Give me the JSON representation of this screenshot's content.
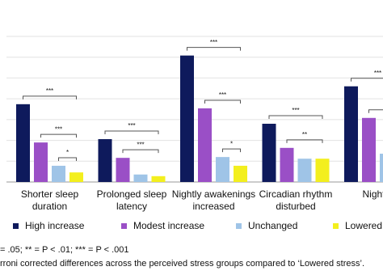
{
  "chart_data": {
    "type": "bar",
    "categories": [
      [
        "Shorter sleep",
        "duration"
      ],
      [
        "Prolonged sleep",
        "latency"
      ],
      [
        "Nightly awakenings",
        "increased"
      ],
      [
        "Circadian rhythm",
        "disturbed"
      ],
      [
        "Nightm"
      ]
    ],
    "series": [
      {
        "name": "High increase",
        "color": "#0e1a5c",
        "values": [
          18.7,
          10.3,
          30.4,
          14.0,
          23.0
        ]
      },
      {
        "name": "Modest increase",
        "color": "#9a4fc6",
        "values": [
          9.5,
          5.8,
          17.7,
          8.2,
          15.4
        ]
      },
      {
        "name": "Unchanged",
        "color": "#9fc4e7",
        "values": [
          3.9,
          1.8,
          6.0,
          5.6,
          6.8
        ]
      },
      {
        "name": "Lowered",
        "color": "#f3ef1e",
        "values": [
          2.3,
          1.4,
          3.9,
          5.6,
          null
        ]
      }
    ],
    "ylim": [
      0,
      35
    ],
    "yticks": [
      0,
      5,
      10,
      15,
      20,
      25,
      30,
      35
    ],
    "grid": true,
    "brackets": [
      {
        "category": 0,
        "from": 0,
        "label": "***"
      },
      {
        "category": 0,
        "from": 1,
        "label": "***"
      },
      {
        "category": 0,
        "from": 2,
        "label": "*"
      },
      {
        "category": 1,
        "from": 0,
        "label": "***"
      },
      {
        "category": 1,
        "from": 1,
        "label": "***"
      },
      {
        "category": 2,
        "from": 0,
        "label": "***"
      },
      {
        "category": 2,
        "from": 1,
        "label": "***"
      },
      {
        "category": 2,
        "from": 2,
        "label": "*"
      },
      {
        "category": 3,
        "from": 0,
        "label": "***"
      },
      {
        "category": 3,
        "from": 1,
        "label": "**"
      },
      {
        "category": 4,
        "from": 0,
        "label": "***"
      },
      {
        "category": 4,
        "from": 1,
        "label": "***"
      }
    ],
    "footnotes": [
      "= .05; ** = P < .01; *** = P < .001",
      "rroni corrected differences across the perceived stress groups compared to ‘Lowered stress’."
    ]
  }
}
